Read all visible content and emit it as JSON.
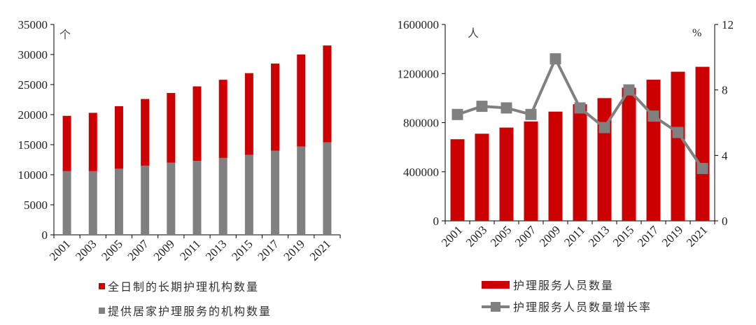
{
  "chart_data": [
    {
      "type": "bar",
      "stacked": true,
      "title": "",
      "xlabel": "",
      "ylabel": "",
      "unit_label": "个",
      "categories": [
        "2001",
        "2003",
        "2005",
        "2007",
        "2009",
        "2011",
        "2013",
        "2015",
        "2017",
        "2019",
        "2021"
      ],
      "series": [
        {
          "name": "提供居家护理服务的机构数量",
          "color": "#808080",
          "values": [
            10600,
            10600,
            11000,
            11500,
            12000,
            12300,
            12800,
            13300,
            14000,
            14700,
            15400
          ]
        },
        {
          "name": "全日制的长期护理机构数量",
          "color": "#cc0000",
          "values": [
            9200,
            9700,
            10400,
            11100,
            11600,
            12400,
            13000,
            13600,
            14500,
            15300,
            16100
          ]
        }
      ],
      "ylim": [
        0,
        35000
      ],
      "yticks": [
        0,
        5000,
        10000,
        15000,
        20000,
        25000,
        30000,
        35000
      ],
      "grid": false,
      "legend_position": "bottom",
      "legend": [
        "全日制的长期护理机构数量",
        "提供居家护理服务的机构数量"
      ]
    },
    {
      "type": "bar+line",
      "title": "",
      "xlabel": "",
      "unit_label_left": "人",
      "unit_label_right": "%",
      "categories": [
        "2001",
        "2003",
        "2005",
        "2007",
        "2009",
        "2011",
        "2013",
        "2015",
        "2017",
        "2019",
        "2021"
      ],
      "series": [
        {
          "name": "护理服务人员数量",
          "type": "bar",
          "axis": "left",
          "color": "#cc0000",
          "values": [
            665000,
            710000,
            760000,
            810000,
            890000,
            950000,
            1000000,
            1085000,
            1150000,
            1215000,
            1255000
          ]
        },
        {
          "name": "护理服务人员数量增长率",
          "type": "line",
          "axis": "right",
          "color": "#808080",
          "values": [
            6.5,
            7.0,
            6.9,
            6.5,
            9.9,
            6.9,
            5.7,
            8.0,
            6.4,
            5.4,
            3.2
          ]
        }
      ],
      "ylim_left": [
        0,
        1600000
      ],
      "yticks_left": [
        0,
        400000,
        800000,
        1200000,
        1600000
      ],
      "ylim_right": [
        0,
        12
      ],
      "yticks_right": [
        0,
        4,
        8,
        12
      ],
      "grid": false,
      "legend_position": "bottom",
      "legend": [
        "护理服务人员数量",
        "护理服务人员数量增长率"
      ]
    }
  ]
}
